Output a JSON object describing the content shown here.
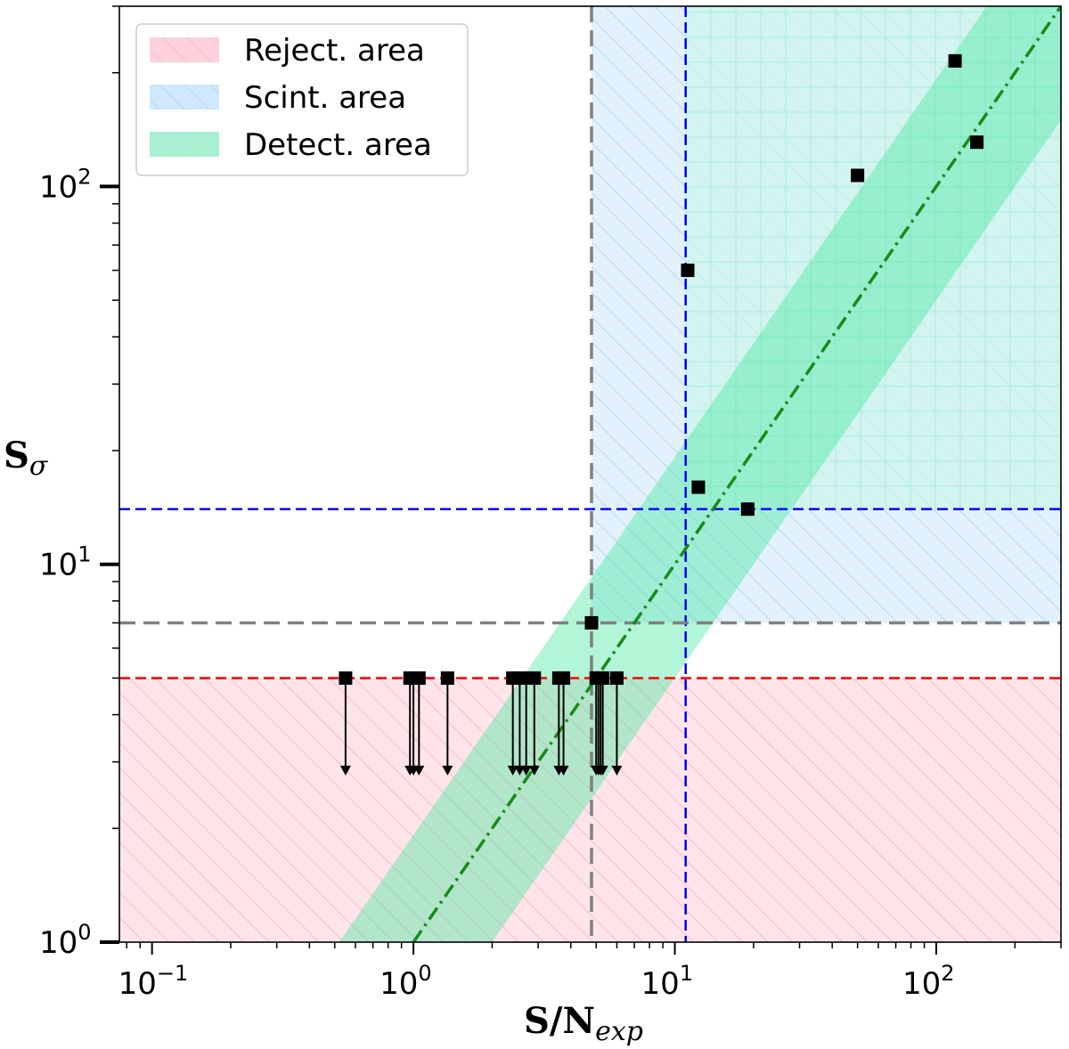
{
  "chart_data": {
    "type": "scatter",
    "title": "",
    "x_scale": "log",
    "y_scale": "log",
    "xlim": [
      0.075,
      300
    ],
    "ylim": [
      1,
      300
    ],
    "x_ticks": [
      {
        "value": 0.1,
        "base": "10",
        "exp": "−1"
      },
      {
        "value": 1,
        "base": "10",
        "exp": "0"
      },
      {
        "value": 10,
        "base": "10",
        "exp": "1"
      },
      {
        "value": 100,
        "base": "10",
        "exp": "2"
      }
    ],
    "y_ticks": [
      {
        "value": 1,
        "base": "10",
        "exp": "0"
      },
      {
        "value": 10,
        "base": "10",
        "exp": "1"
      },
      {
        "value": 100,
        "base": "10",
        "exp": "2"
      }
    ],
    "xlabel": {
      "main": "S/N",
      "sub": "exp"
    },
    "ylabel": {
      "main": "S",
      "sub": "σ"
    },
    "legend": {
      "position": "top-left",
      "entries": [
        {
          "label": "Reject. area",
          "color": "#ffd1dc"
        },
        {
          "label": "Scint. area",
          "color": "#cfe8fb"
        },
        {
          "label": "Detect. area",
          "color": "#a8f0d0"
        }
      ]
    },
    "regions": {
      "reject": {
        "y_max": 5,
        "color": "#ffe4ea"
      },
      "scint": {
        "x_min": 4.8,
        "y_min": 7,
        "color": "#e2f1fc"
      },
      "detect": {
        "x_min": 11,
        "y_min": 14,
        "color": "#cdf5ea"
      }
    },
    "reference_lines": [
      {
        "orientation": "horizontal",
        "value": 14,
        "color": "#0000ee",
        "style": "dashed"
      },
      {
        "orientation": "vertical",
        "value": 11,
        "color": "#0000ee",
        "style": "dashed"
      },
      {
        "orientation": "horizontal",
        "value": 7,
        "color": "#808080",
        "style": "dashed"
      },
      {
        "orientation": "vertical",
        "value": 4.8,
        "color": "#808080",
        "style": "dashed"
      },
      {
        "orientation": "horizontal",
        "value": 5,
        "color": "#ff0000",
        "style": "dashed"
      }
    ],
    "fit_line": {
      "slope": 1.0,
      "intercept_x_at_y1": 1.0,
      "color": "#1a8a1a",
      "style": "dashdot"
    },
    "band": {
      "x_low_at_y1": 0.52,
      "x_high_at_y1": 2.0,
      "color": "#3ee89a",
      "opacity": 0.4
    },
    "detections": [
      {
        "x": 4.8,
        "y": 7
      },
      {
        "x": 11.2,
        "y": 60
      },
      {
        "x": 12.3,
        "y": 16
      },
      {
        "x": 19,
        "y": 14
      },
      {
        "x": 50,
        "y": 107
      },
      {
        "x": 118,
        "y": 215
      },
      {
        "x": 143,
        "y": 131
      }
    ],
    "upper_limits": {
      "y": 5,
      "arrow_to": 2.9,
      "x": [
        0.55,
        0.97,
        1.0,
        1.05,
        1.35,
        2.4,
        2.55,
        2.7,
        2.9,
        3.6,
        3.75,
        5.0,
        5.1,
        5.2,
        5.3,
        6.0
      ]
    },
    "marker": {
      "shape": "square",
      "color": "#000000"
    }
  }
}
